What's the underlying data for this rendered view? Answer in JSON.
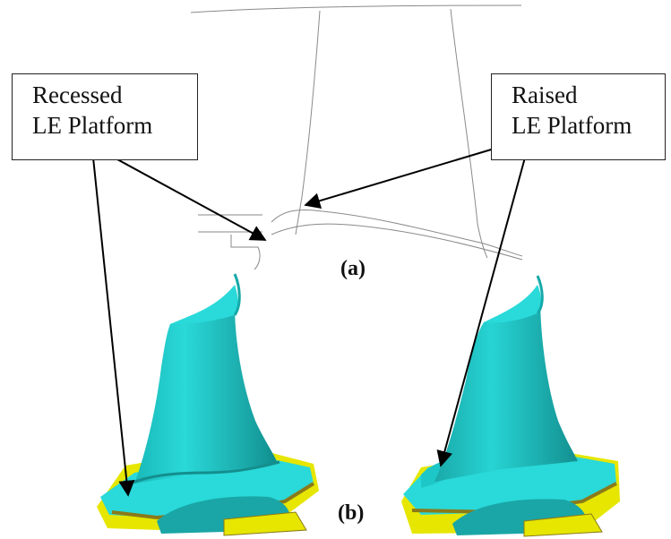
{
  "labels": {
    "recessed": {
      "line1": "Recessed",
      "line2": "LE Platform"
    },
    "raised": {
      "line1": "Raised",
      "line2": "LE Platform"
    }
  },
  "captions": {
    "a": "(a)",
    "b": "(b)"
  },
  "colors": {
    "blade_cyan": "#22dede",
    "blade_shadow": "#159a9a",
    "platform_yellow": "#e6e600",
    "platform_olive": "#8a7a1a",
    "outline_gray": "#8a8a8a"
  }
}
